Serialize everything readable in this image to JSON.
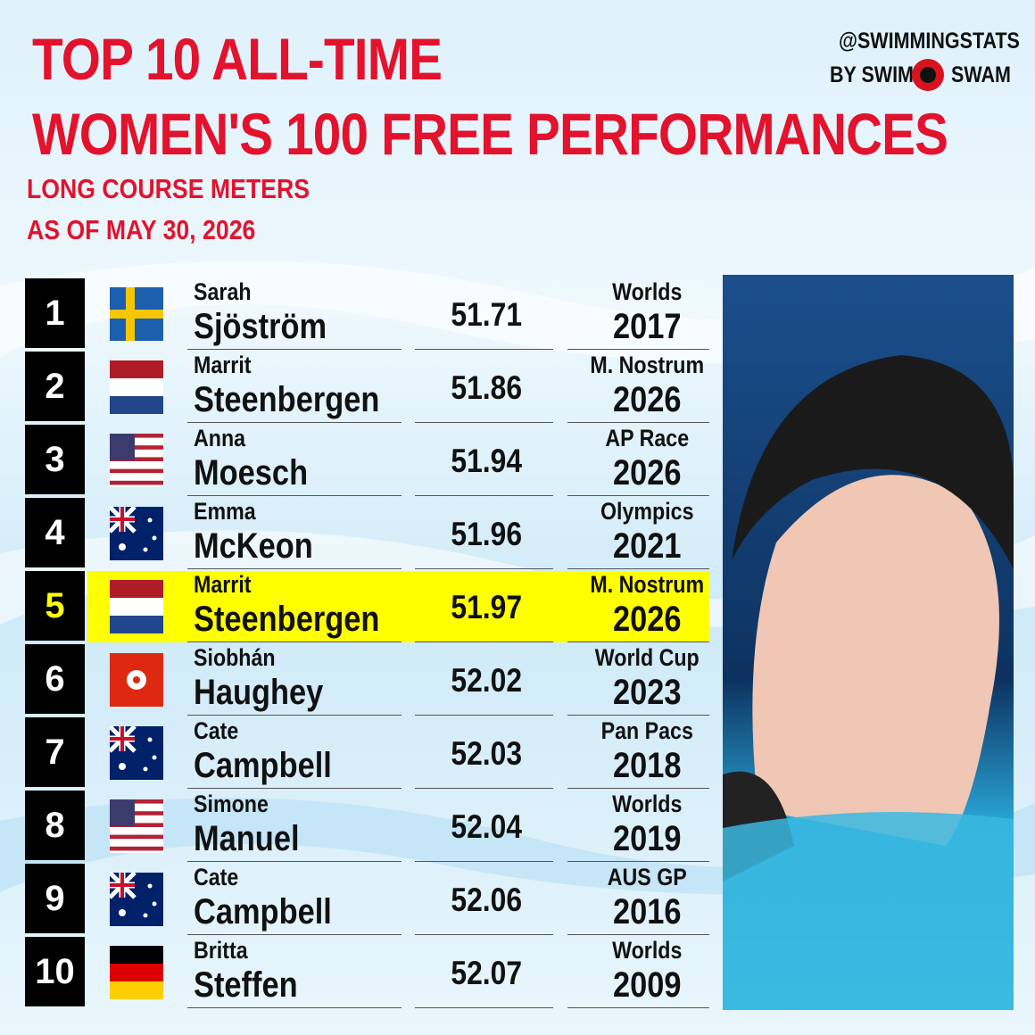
{
  "header": {
    "title_lines": [
      "TOP 10 ALL-TIME",
      "WOMEN'S 100 FREE PERFORMANCES"
    ],
    "subtitle_lines": [
      "LONG COURSE METERS",
      "AS OF MAY 30, 2026"
    ],
    "brand_handle": "@SWIMMINGSTATS",
    "brand_by": "BY SWIM",
    "brand_end": "SWAM"
  },
  "table": {
    "rows": [
      [
        "1",
        "Sarah",
        "Sjöström",
        "51.71",
        "Worlds",
        "2017"
      ],
      [
        "2",
        "Marrit",
        "Steenbergen",
        "51.86",
        "M. Nostrum",
        "2026"
      ],
      [
        "3",
        "Anna",
        "Moesch",
        "51.94",
        "AP Race",
        "2026"
      ],
      [
        "4",
        "Emma",
        "McKeon",
        "51.96",
        "Olympics",
        "2021"
      ],
      [
        "5",
        "Marrit",
        "Steenbergen",
        "51.97",
        "M. Nostrum",
        "2026"
      ],
      [
        "6",
        "Siobhán",
        "Haughey",
        "52.02",
        "World Cup",
        "2023"
      ],
      [
        "7",
        "Cate",
        "Campbell",
        "52.03",
        "Pan Pacs",
        "2018"
      ],
      [
        "8",
        "Simone",
        "Manuel",
        "52.04",
        "Worlds",
        "2019"
      ],
      [
        "9",
        "Cate",
        "Campbell",
        "52.06",
        "AUS GP",
        "2016"
      ],
      [
        "10",
        "Britta",
        "Steffen",
        "52.07",
        "Worlds",
        "2009"
      ]
    ]
  }
}
